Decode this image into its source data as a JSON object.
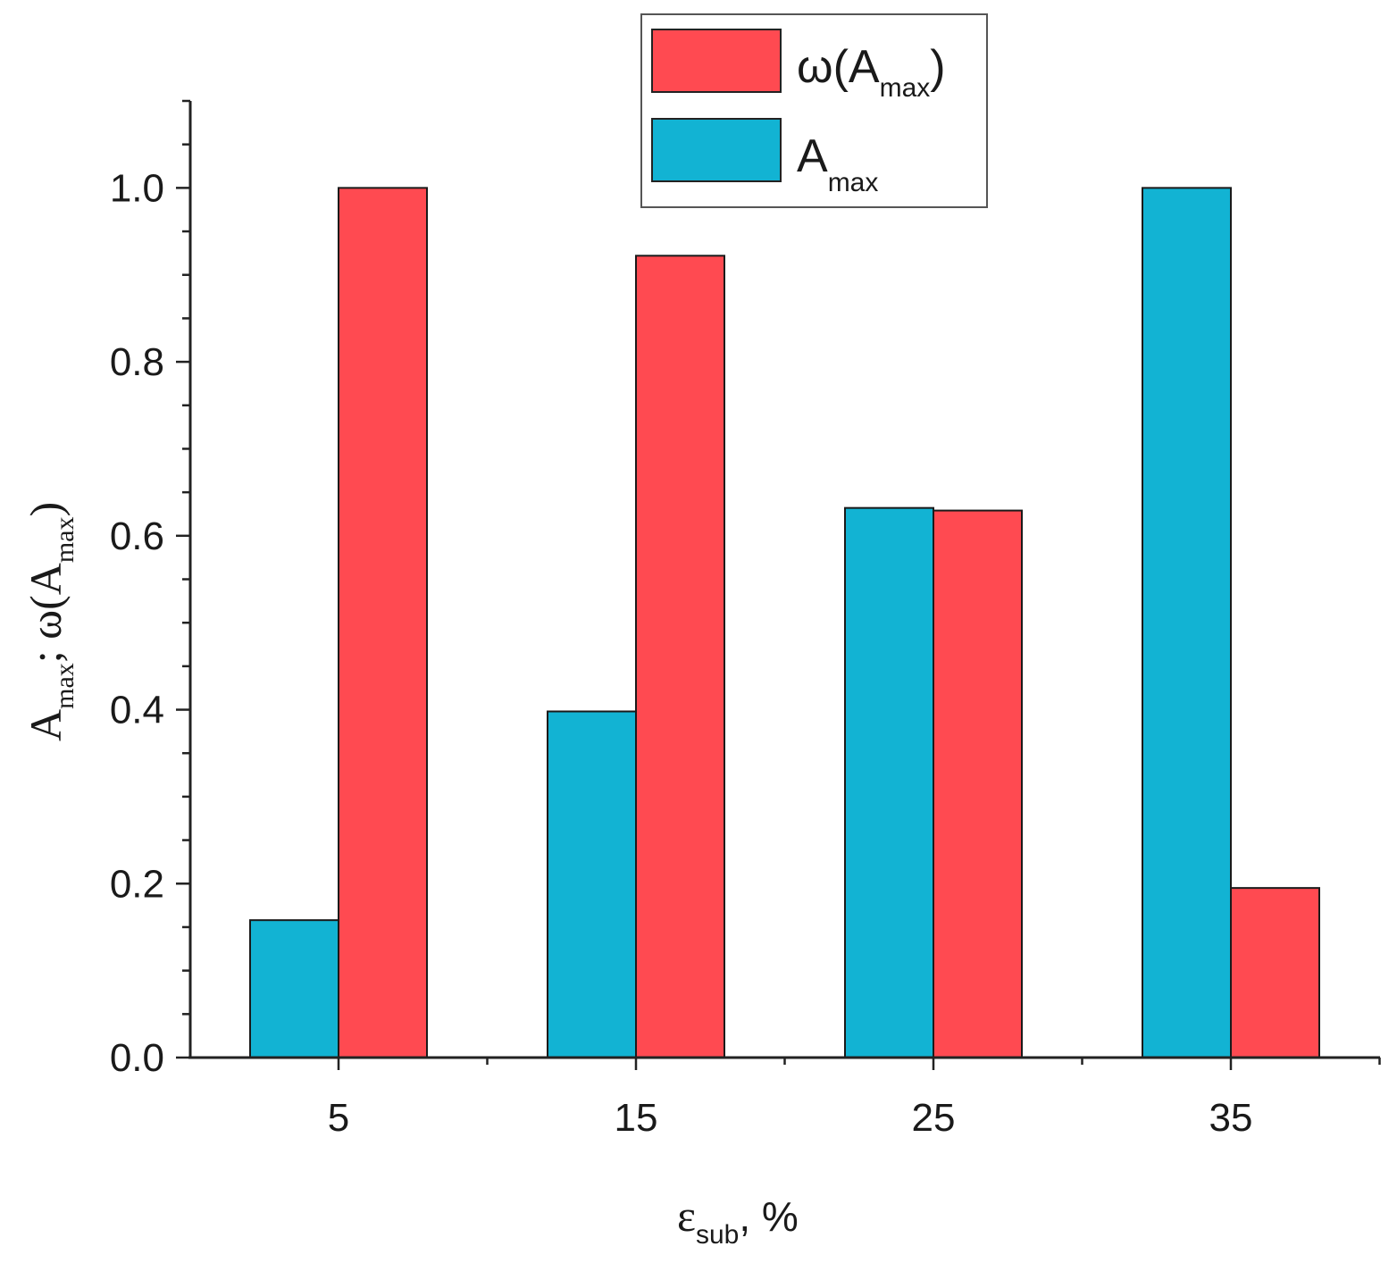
{
  "chart_data": {
    "type": "bar",
    "categories": [
      "5",
      "15",
      "25",
      "35"
    ],
    "series": [
      {
        "name": "A_max",
        "color": "#12b3d3",
        "values": [
          0.158,
          0.398,
          0.632,
          1.0
        ]
      },
      {
        "name": "omega(A_max)",
        "color": "#ff4a51",
        "values": [
          1.0,
          0.922,
          0.629,
          0.195
        ]
      }
    ],
    "ylim": [
      0,
      1.1
    ],
    "yticks": [
      "0.0",
      "0.2",
      "0.4",
      "0.6",
      "0.8",
      "1.0"
    ],
    "grid": false,
    "legend_position": "top-center",
    "xlabel": {
      "symbol": "ε",
      "sub": "sub",
      "suffix": ", %"
    },
    "ylabel": {
      "a": "A",
      "a_sub": "max",
      "sep": "; ",
      "omega": "ω(A",
      "omega_sub": "max",
      "close": ")"
    },
    "legend": [
      {
        "series": "omega(A_max)",
        "base": "ω(A",
        "sub": "max",
        "close": ")"
      },
      {
        "series": "A_max",
        "base": "A",
        "sub": "max",
        "close": ""
      }
    ]
  }
}
